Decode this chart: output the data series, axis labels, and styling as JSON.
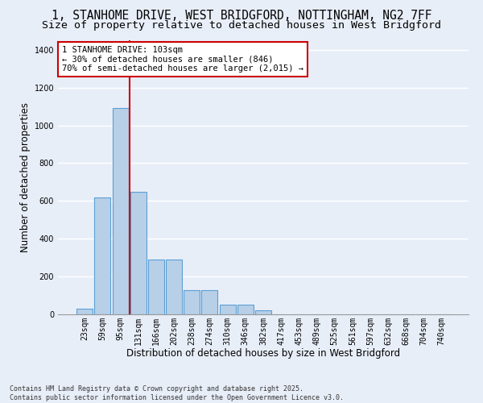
{
  "title_line1": "1, STANHOME DRIVE, WEST BRIDGFORD, NOTTINGHAM, NG2 7FF",
  "title_line2": "Size of property relative to detached houses in West Bridgford",
  "xlabel": "Distribution of detached houses by size in West Bridgford",
  "ylabel": "Number of detached properties",
  "categories": [
    "23sqm",
    "59sqm",
    "95sqm",
    "131sqm",
    "166sqm",
    "202sqm",
    "238sqm",
    "274sqm",
    "310sqm",
    "346sqm",
    "382sqm",
    "417sqm",
    "453sqm",
    "489sqm",
    "525sqm",
    "561sqm",
    "597sqm",
    "632sqm",
    "668sqm",
    "704sqm",
    "740sqm"
  ],
  "bar_values": [
    30,
    620,
    1090,
    650,
    290,
    290,
    130,
    130,
    50,
    50,
    20,
    0,
    0,
    0,
    0,
    0,
    0,
    0,
    0,
    0,
    0
  ],
  "bar_color": "#b8cfe8",
  "bar_edge_color": "#5a9fd4",
  "bg_color": "#e8eef8",
  "grid_color": "#ffffff",
  "vline_color": "#cc0000",
  "vline_x_index": 2.5,
  "annotation_text": "1 STANHOME DRIVE: 103sqm\n← 30% of detached houses are smaller (846)\n70% of semi-detached houses are larger (2,015) →",
  "annotation_box_color": "#ffffff",
  "annotation_box_edge": "#cc0000",
  "ylim": [
    0,
    1450
  ],
  "yticks": [
    0,
    200,
    400,
    600,
    800,
    1000,
    1200,
    1400
  ],
  "footnote": "Contains HM Land Registry data © Crown copyright and database right 2025.\nContains public sector information licensed under the Open Government Licence v3.0.",
  "title_fontsize": 10.5,
  "subtitle_fontsize": 9.5,
  "axis_label_fontsize": 8.5,
  "tick_fontsize": 7,
  "annotation_fontsize": 7.5,
  "footnote_fontsize": 6
}
